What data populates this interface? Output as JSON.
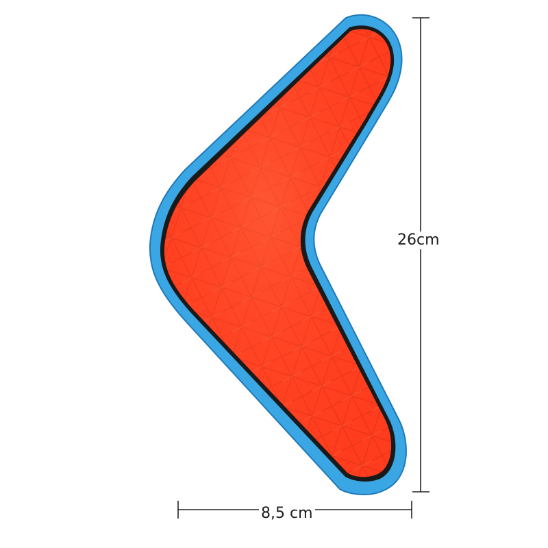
{
  "image": {
    "subject": "boomerang-toy",
    "colors": {
      "body": "#ff3d1e",
      "body_highlight": "#ff6a44",
      "body_shadow": "#e12f12",
      "rim": "#3aa6e3",
      "rim_dark": "#1f78b8",
      "edge_line": "#1a1a1a",
      "dimension_line": "#222222"
    }
  },
  "dimensions": {
    "height_label": "26cm",
    "width_label": "8,5 cm"
  }
}
